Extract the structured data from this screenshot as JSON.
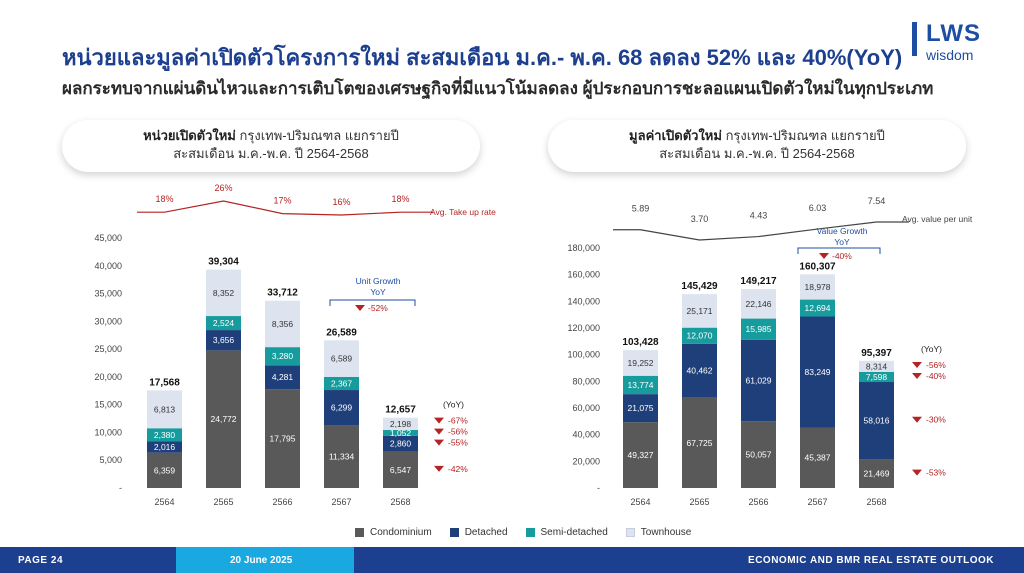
{
  "header": {
    "title": "หน่วยและมูลค่าเปิดตัวโครงการใหม่ สะสมเดือน ม.ค.- พ.ค. 68 ลดลง 52% และ 40%(YoY)",
    "subtitle": "ผลกระทบจากแผ่นดินไหวและการเติบโตของเศรษฐกิจที่มีแนวโน้มลดลง ผู้ประกอบการชะลอแผนเปิดตัวใหม่ในทุกประเภท"
  },
  "logo": {
    "main": "LWS",
    "sub": "wisdom"
  },
  "left_panel": {
    "title_bold": "หน่วยเปิดตัวใหม่",
    "title_rest": " กรุงเทพ-ปริมณฑล แยกรายปี",
    "title_line2": "สะสมเดือน ม.ค.-พ.ค. ปี 2564-2568"
  },
  "right_panel": {
    "title_bold": "มูลค่าเปิดตัวใหม่",
    "title_rest": " กรุงเทพ-ปริมณฑล แยกรายปี",
    "title_line2": "สะสมเดือน ม.ค.-พ.ค. ปี 2564-2568"
  },
  "legend": [
    {
      "name": "Condominium",
      "color": "#595959"
    },
    {
      "name": "Detached",
      "color": "#1f3f7a"
    },
    {
      "name": "Semi-detached",
      "color": "#169c9c"
    },
    {
      "name": "Townhouse",
      "color": "#dde4f0"
    }
  ],
  "footer": {
    "page": "PAGE 24",
    "date": "20 June 2025",
    "right": "ECONOMIC AND BMR REAL ESTATE OUTLOOK"
  },
  "chart_data": [
    {
      "type": "bar",
      "stacked": true,
      "title": "หน่วยเปิดตัวใหม่ กรุงเทพ-ปริมณฑล แยกรายปี",
      "categories": [
        "2564",
        "2565",
        "2566",
        "2567",
        "2568"
      ],
      "series": [
        {
          "name": "Condominium",
          "values": [
            6359,
            24772,
            17795,
            11334,
            6547
          ],
          "labels": [
            "6,359",
            "24,772",
            "17,795",
            "11,334",
            "6,547"
          ]
        },
        {
          "name": "Detached",
          "values": [
            2016,
            3656,
            4281,
            6299,
            2860
          ],
          "labels": [
            "2,016",
            "3,656",
            "4,281",
            "6,299",
            "2,860"
          ]
        },
        {
          "name": "Semi-detached",
          "values": [
            2380,
            2524,
            3280,
            2367,
            1052
          ],
          "labels": [
            "2,380",
            "2,524",
            "3,280",
            "2,367",
            "1,052"
          ]
        },
        {
          "name": "Townhouse",
          "values": [
            6813,
            8352,
            8356,
            6589,
            2198
          ],
          "labels": [
            "6,813",
            "8,352",
            "8,356",
            "6,589",
            "2,198"
          ]
        }
      ],
      "totals": [
        17568,
        39304,
        33712,
        26589,
        12657
      ],
      "total_labels": [
        "17,568",
        "39,304",
        "33,712",
        "26,589",
        "12,657"
      ],
      "ylim": [
        0,
        45000
      ],
      "yticks": [
        0,
        5000,
        10000,
        15000,
        20000,
        25000,
        30000,
        35000,
        40000,
        45000
      ],
      "ytick_labels": [
        "-",
        "5,000",
        "10,000",
        "15,000",
        "20,000",
        "25,000",
        "30,000",
        "35,000",
        "40,000",
        "45,000"
      ],
      "line": {
        "name": "Avg. Take up rate",
        "values": [
          18,
          26,
          17,
          16,
          18
        ],
        "labels": [
          "18%",
          "26%",
          "17%",
          "16%",
          "18%"
        ],
        "color": "#b52323"
      },
      "growth": {
        "header": [
          "Unit Growth",
          "YoY"
        ],
        "header_total": "-52%",
        "yoy_label": "(YoY)",
        "by_series": [
          "-42%",
          "-55%",
          "-56%",
          "-67%"
        ]
      }
    },
    {
      "type": "bar",
      "stacked": true,
      "title": "มูลค่าเปิดตัวใหม่ กรุงเทพ-ปริมณฑล แยกรายปี",
      "categories": [
        "2564",
        "2565",
        "2566",
        "2567",
        "2568"
      ],
      "series": [
        {
          "name": "Condominium",
          "values": [
            49327,
            67725,
            50057,
            45387,
            21469
          ],
          "labels": [
            "49,327",
            "67,725",
            "50,057",
            "45,387",
            "21,469"
          ]
        },
        {
          "name": "Detached",
          "values": [
            21075,
            40462,
            61029,
            83249,
            58016
          ],
          "labels": [
            "21,075",
            "40,462",
            "61,029",
            "83,249",
            "58,016"
          ]
        },
        {
          "name": "Semi-detached",
          "values": [
            13774,
            12070,
            15985,
            12694,
            7598
          ],
          "labels": [
            "13,774",
            "12,070",
            "15,985",
            "12,694",
            "7,598"
          ]
        },
        {
          "name": "Townhouse",
          "values": [
            19252,
            25171,
            22146,
            18978,
            8314
          ],
          "labels": [
            "19,252",
            "25,171",
            "22,146",
            "18,978",
            "8,314"
          ]
        }
      ],
      "totals": [
        103428,
        145429,
        149217,
        160307,
        95397
      ],
      "total_labels": [
        "103,428",
        "145,429",
        "149,217",
        "160,307",
        "95,397"
      ],
      "ylim": [
        0,
        180000
      ],
      "yticks": [
        0,
        20000,
        40000,
        60000,
        80000,
        100000,
        120000,
        140000,
        160000,
        180000
      ],
      "ytick_labels": [
        "-",
        "20,000",
        "40,000",
        "60,000",
        "80,000",
        "100,000",
        "120,000",
        "140,000",
        "160,000",
        "180,000"
      ],
      "line": {
        "name": "Avg. value per unit",
        "values": [
          5.89,
          3.7,
          4.43,
          6.03,
          7.54
        ],
        "labels": [
          "5.89",
          "3.70",
          "4.43",
          "6.03",
          "7.54"
        ],
        "color": "#444444"
      },
      "growth": {
        "header": [
          "Value Growth",
          "YoY"
        ],
        "header_total": "-40%",
        "yoy_label": "(YoY)",
        "by_series": [
          "-53%",
          "-30%",
          "-40%",
          "-56%"
        ]
      }
    }
  ]
}
